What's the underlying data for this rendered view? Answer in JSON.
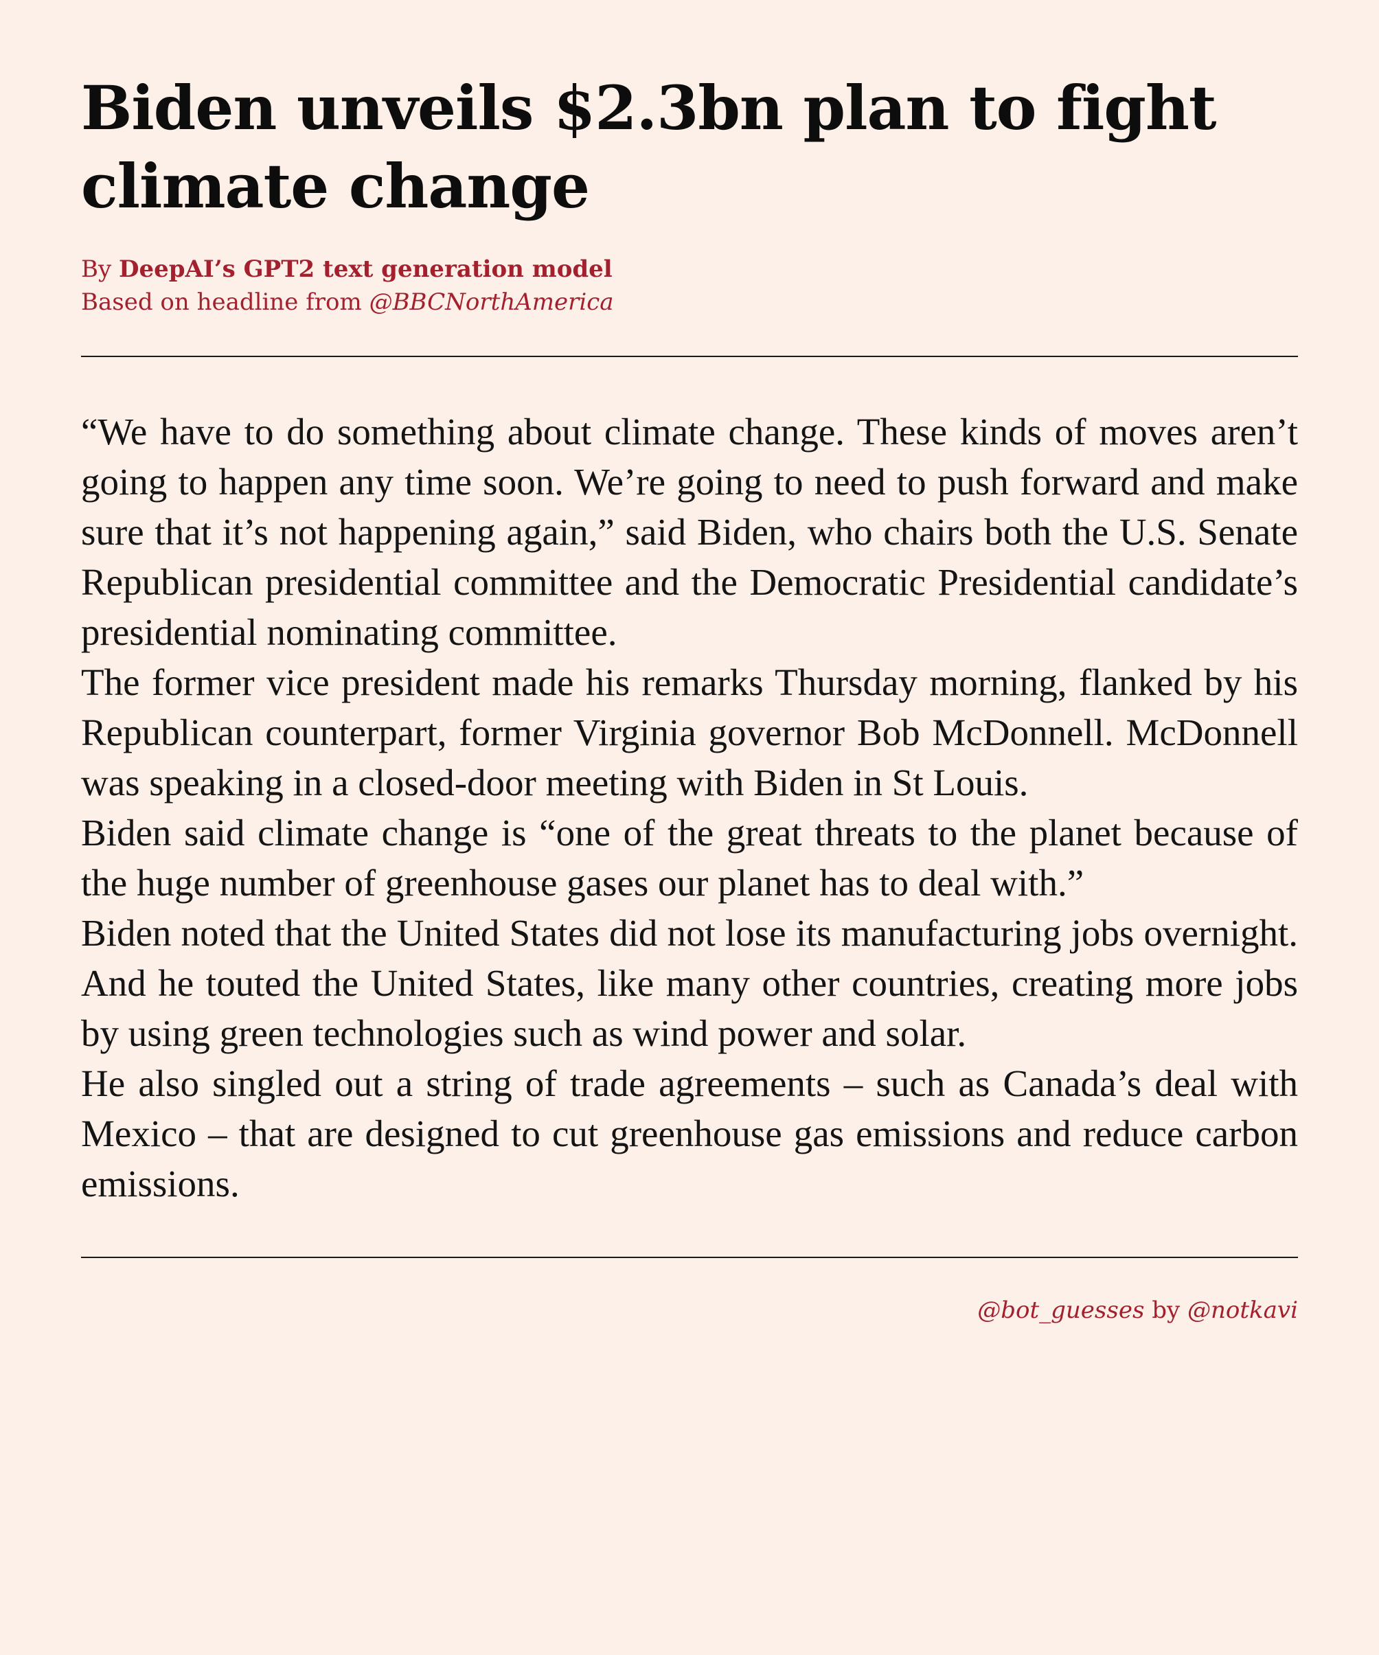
{
  "article": {
    "title": "Biden unveils $2.3bn plan to fight climate change",
    "byline": {
      "by_prefix": "By ",
      "author": "DeepAI’s GPT2 text generation model",
      "based_on_prefix": "Based on headline from ",
      "source": "@BBCNorthAmerica"
    },
    "paragraphs": [
      "“We have to do something about climate change.  These kinds of moves aren’t going to happen any time soon.  We’re going to need to push forward and make sure that it’s not happening again,” said Biden, who chairs both the U.S. Senate Republican presidential committee and the Democratic Presidential candidate’s presidential nominating committee.",
      "The former vice president made his remarks Thursday morning, flanked by his Republican counterpart, former Virginia governor Bob McDonnell.  McDonnell was speaking in a closed-door meeting with Biden in St Louis.",
      "Biden said climate change is “one of the great threats to the planet because of the huge number of greenhouse gases our planet has to deal with.”",
      "Biden noted that the United States did not lose its manufacturing jobs overnight.  And he touted the United States, like many other countries, creating more jobs by using green technologies such as wind power and solar.",
      "He also singled out a string of trade agreements – such as Canada’s deal with Mexico – that are designed to cut greenhouse gas emissions and reduce carbon emissions."
    ]
  },
  "footer": {
    "bot_handle": "@bot_guesses",
    "by_word": " by ",
    "author_handle": "@notkavi"
  },
  "colors": {
    "background": "#fdf0e8",
    "accent": "#a3212f",
    "text": "#141414"
  }
}
